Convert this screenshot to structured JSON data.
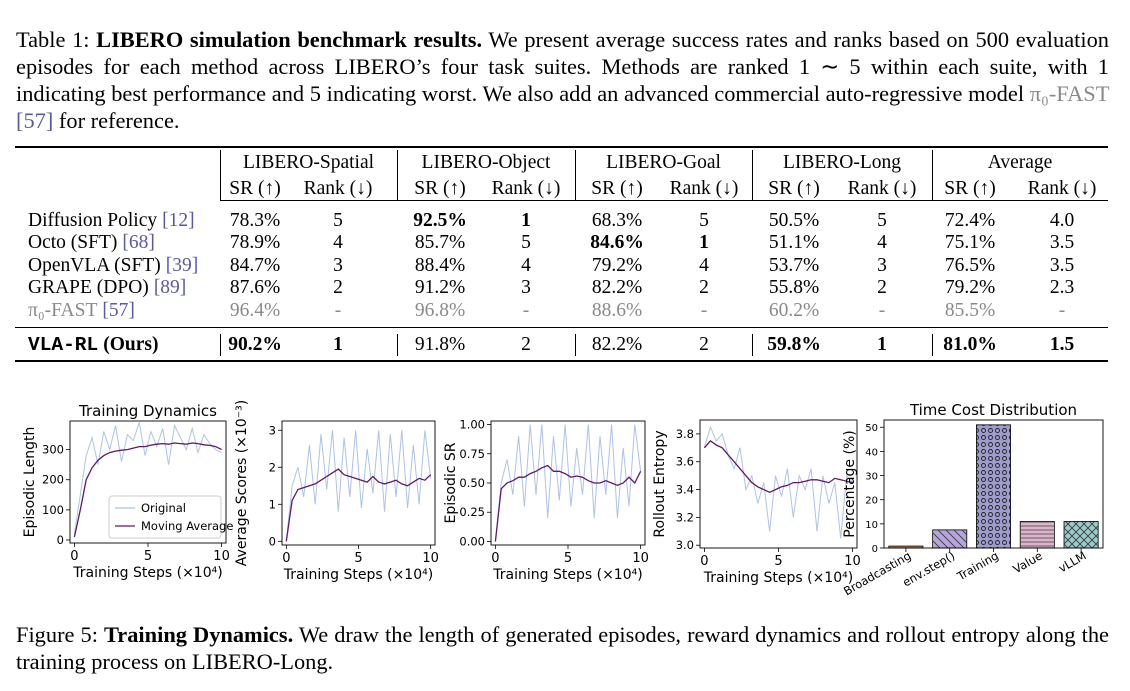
{
  "table_caption": {
    "label": "Table 1:",
    "bold": "LIBERO simulation benchmark results.",
    "text": "We present average success rates and ranks based on 500 evaluation episodes for each method across LIBERO’s four task suites. Methods are ranked 1 ∼ 5 within each suite, with 1 indicating best performance and 5 indicating worst. We also add an advanced commercial auto-regressive model",
    "model": "π₀-FAST",
    "cite": "[57]",
    "end": "for reference."
  },
  "table": {
    "groups": [
      "LIBERO-Spatial",
      "LIBERO-Object",
      "LIBERO-Goal",
      "LIBERO-Long",
      "Average"
    ],
    "subheaders": [
      "SR (↑)",
      "Rank (↓)"
    ],
    "rows": [
      {
        "name": "Diffusion Policy",
        "cite": "[12]",
        "cells": [
          "78.3%",
          "5",
          "92.5%",
          "1",
          "68.3%",
          "5",
          "50.5%",
          "5",
          "72.4%",
          "4.0"
        ],
        "bold": [
          2,
          3
        ]
      },
      {
        "name": "Octo (SFT)",
        "cite": "[68]",
        "cells": [
          "78.9%",
          "4",
          "85.7%",
          "5",
          "84.6%",
          "1",
          "51.1%",
          "4",
          "75.1%",
          "3.5"
        ],
        "bold": [
          4,
          5
        ]
      },
      {
        "name": "OpenVLA (SFT)",
        "cite": "[39]",
        "cells": [
          "84.7%",
          "3",
          "88.4%",
          "4",
          "79.2%",
          "4",
          "53.7%",
          "3",
          "76.5%",
          "3.5"
        ],
        "bold": []
      },
      {
        "name": "GRAPE (DPO)",
        "cite": "[89]",
        "cells": [
          "87.6%",
          "2",
          "91.2%",
          "3",
          "82.2%",
          "2",
          "55.8%",
          "2",
          "79.2%",
          "2.3"
        ],
        "bold": []
      },
      {
        "name": "π₀-FAST",
        "cite": "[57]",
        "cells": [
          "96.4%",
          "-",
          "96.8%",
          "-",
          "88.6%",
          "-",
          "60.2%",
          "-",
          "85.5%",
          "-"
        ],
        "bold": [],
        "style": "muted"
      },
      {
        "name": "VLA-RL",
        "suffix": "(Ours)",
        "cells": [
          "90.2%",
          "1",
          "91.8%",
          "2",
          "82.2%",
          "2",
          "59.8%",
          "1",
          "81.0%",
          "1.5"
        ],
        "bold": [
          0,
          1,
          6,
          7,
          8,
          9
        ],
        "style": "ours"
      }
    ]
  },
  "chart_data": [
    {
      "type": "line",
      "title": "Training Dynamics",
      "xlabel": "Training Steps (×10⁴)",
      "ylabel": "Episodic Length",
      "x": [
        0,
        0.4,
        0.8,
        1.2,
        1.6,
        2,
        2.4,
        2.8,
        3.2,
        3.6,
        4,
        4.4,
        4.8,
        5.2,
        5.6,
        6,
        6.4,
        6.8,
        7.2,
        7.6,
        8,
        8.4,
        8.8,
        9.2,
        9.6,
        10
      ],
      "series": [
        {
          "name": "Original",
          "color": "#aec3e6",
          "values": [
            20,
            150,
            280,
            340,
            250,
            360,
            300,
            380,
            260,
            350,
            330,
            390,
            280,
            360,
            310,
            370,
            250,
            380,
            340,
            300,
            370,
            290,
            350,
            320,
            300,
            290
          ]
        },
        {
          "name": "Moving Average",
          "color": "#5e1a6e",
          "values": [
            10,
            100,
            200,
            240,
            265,
            280,
            290,
            295,
            298,
            300,
            305,
            310,
            310,
            315,
            318,
            320,
            318,
            322,
            320,
            318,
            322,
            320,
            316,
            314,
            310,
            300
          ]
        }
      ],
      "xlim": [
        -0.3,
        10.3
      ],
      "xticks": [
        0,
        5,
        10
      ],
      "ylim": [
        -10,
        395
      ],
      "yticks": [
        0,
        100,
        200,
        300
      ],
      "legend": "lower right"
    },
    {
      "type": "line",
      "xlabel": "Training Steps (×10⁴)",
      "ylabel": "Average Scores (×10⁻³)",
      "x": [
        0,
        0.4,
        0.8,
        1.2,
        1.6,
        2,
        2.4,
        2.8,
        3.2,
        3.6,
        4,
        4.4,
        4.8,
        5.2,
        5.6,
        6,
        6.4,
        6.8,
        7.2,
        7.6,
        8,
        8.4,
        8.8,
        9.2,
        9.6,
        10
      ],
      "series": [
        {
          "name": "Original",
          "color": "#aec3e6",
          "values": [
            0,
            1.5,
            2.0,
            1.2,
            2.6,
            1.0,
            2.9,
            1.4,
            3.0,
            0.8,
            2.8,
            1.2,
            3.0,
            0.9,
            2.5,
            1.3,
            3.0,
            0.8,
            2.9,
            1.2,
            3.0,
            0.9,
            2.6,
            1.0,
            3.0,
            1.7
          ]
        },
        {
          "name": "Moving Average",
          "color": "#5e1a6e",
          "values": [
            0,
            1.1,
            1.4,
            1.45,
            1.5,
            1.55,
            1.65,
            1.75,
            1.85,
            1.95,
            1.8,
            1.75,
            1.7,
            1.65,
            1.6,
            1.75,
            1.6,
            1.55,
            1.6,
            1.65,
            1.55,
            1.5,
            1.6,
            1.7,
            1.65,
            1.8
          ]
        }
      ],
      "xlim": [
        -0.3,
        10.3
      ],
      "xticks": [
        0,
        5,
        10
      ],
      "ylim": [
        -0.1,
        3.25
      ],
      "yticks": [
        0,
        1,
        2,
        3
      ]
    },
    {
      "type": "line",
      "xlabel": "Training Steps (×10⁴)",
      "ylabel": "Episodic SR",
      "x": [
        0,
        0.4,
        0.8,
        1.2,
        1.6,
        2,
        2.4,
        2.8,
        3.2,
        3.6,
        4,
        4.4,
        4.8,
        5.2,
        5.6,
        6,
        6.4,
        6.8,
        7.2,
        7.6,
        8,
        8.4,
        8.8,
        9.2,
        9.6,
        10
      ],
      "series": [
        {
          "name": "Original",
          "color": "#aec3e6",
          "values": [
            0,
            0.5,
            0.7,
            0.4,
            0.9,
            0.3,
            1.0,
            0.4,
            1.0,
            0.2,
            0.9,
            0.35,
            1.0,
            0.3,
            0.8,
            0.4,
            1.0,
            0.2,
            0.9,
            0.4,
            1.0,
            0.2,
            0.8,
            0.3,
            1.0,
            0.6
          ]
        },
        {
          "name": "Moving Average",
          "color": "#5e1a6e",
          "values": [
            0,
            0.45,
            0.5,
            0.52,
            0.55,
            0.55,
            0.58,
            0.6,
            0.63,
            0.65,
            0.6,
            0.6,
            0.58,
            0.55,
            0.56,
            0.55,
            0.52,
            0.5,
            0.5,
            0.52,
            0.5,
            0.48,
            0.5,
            0.55,
            0.5,
            0.6
          ]
        }
      ],
      "xlim": [
        -0.3,
        10.3
      ],
      "xticks": [
        0,
        5,
        10
      ],
      "ylim": [
        -0.03,
        1.03
      ],
      "yticks": [
        {
          "value": 0,
          "label": "0.00"
        },
        {
          "value": 0.25,
          "label": "0.25"
        },
        {
          "value": 0.5,
          "label": "0.50"
        },
        {
          "value": 0.75,
          "label": "0.75"
        },
        {
          "value": 1,
          "label": "1.00"
        }
      ]
    },
    {
      "type": "line",
      "xlabel": "Training Steps (×10⁴)",
      "ylabel": "Rollout Entropy",
      "x": [
        0,
        0.4,
        0.8,
        1.2,
        1.6,
        2,
        2.4,
        2.8,
        3.2,
        3.6,
        4,
        4.4,
        4.8,
        5.2,
        5.6,
        6,
        6.4,
        6.8,
        7.2,
        7.6,
        8,
        8.4,
        8.8,
        9.2,
        9.6,
        10
      ],
      "series": [
        {
          "name": "Original",
          "color": "#aec3e6",
          "values": [
            3.7,
            3.85,
            3.75,
            3.8,
            3.65,
            3.55,
            3.7,
            3.4,
            3.5,
            3.3,
            3.45,
            3.1,
            3.5,
            3.35,
            3.55,
            3.2,
            3.5,
            3.4,
            3.55,
            3.1,
            3.5,
            3.3,
            3.45,
            3.05,
            3.5,
            3.45
          ]
        },
        {
          "name": "Moving Average",
          "color": "#5e1a6e",
          "values": [
            3.7,
            3.75,
            3.72,
            3.7,
            3.65,
            3.6,
            3.55,
            3.5,
            3.45,
            3.42,
            3.4,
            3.38,
            3.4,
            3.42,
            3.43,
            3.45,
            3.45,
            3.46,
            3.47,
            3.47,
            3.46,
            3.45,
            3.48,
            3.47,
            3.46,
            3.45
          ]
        }
      ],
      "xlim": [
        -0.3,
        10.3
      ],
      "xticks": [
        0,
        5,
        10
      ],
      "ylim": [
        2.98,
        3.9
      ],
      "yticks": [
        {
          "value": 3.0,
          "label": "3.0"
        },
        3.2,
        3.4,
        3.6,
        3.8
      ]
    },
    {
      "type": "bar",
      "title": "Time Cost Distribution",
      "ylabel": "Percentage (%)",
      "categories": [
        "Broadcasting",
        "env.step()",
        "Training",
        "Value",
        "vLLM"
      ],
      "values": [
        0.8,
        7.5,
        51,
        11,
        11
      ],
      "colors": [
        "#c8875a",
        "#b7a4dc",
        "#9e9ccc",
        "#dcb4cc",
        "#9ccaca"
      ],
      "hatches": [
        null,
        "diagonal",
        "dots",
        "horizontal",
        "cross"
      ],
      "ylim": [
        0,
        53
      ],
      "yticks": [
        0,
        10,
        20,
        30,
        40,
        50
      ]
    }
  ],
  "figure_caption": {
    "label": "Figure 5:",
    "bold": "Training Dynamics.",
    "text": "We draw the length of generated episodes, reward dynamics and rollout entropy along the training process on LIBERO-Long."
  }
}
